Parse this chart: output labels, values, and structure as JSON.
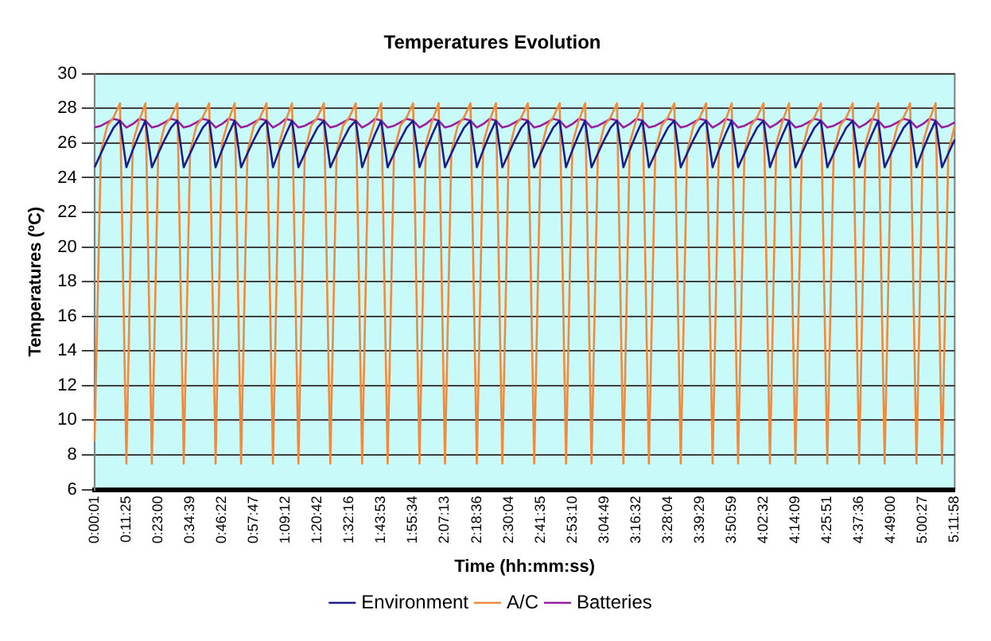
{
  "chart_data": {
    "type": "line",
    "title": "Temperatures Evolution",
    "xlabel": "Time (hh:mm:ss)",
    "ylabel": "Temperatures (ºC)",
    "categories": [
      "0:00:01",
      null,
      null,
      null,
      null,
      "0:11:25",
      null,
      null,
      null,
      null,
      "0:23:00",
      null,
      null,
      null,
      null,
      "0:34:39",
      null,
      null,
      null,
      null,
      "0:46:22",
      null,
      null,
      null,
      null,
      "0:57:47",
      null,
      null,
      null,
      null,
      "1:09:12",
      null,
      null,
      null,
      null,
      "1:20:42",
      null,
      null,
      null,
      null,
      "1:32:16",
      null,
      null,
      null,
      null,
      "1:43:53",
      null,
      null,
      null,
      null,
      "1:55:34",
      null,
      null,
      null,
      null,
      "2:07:13",
      null,
      null,
      null,
      null,
      "2:18:36",
      null,
      null,
      null,
      null,
      "2:30:04",
      null,
      null,
      null,
      null,
      "2:41:35",
      null,
      null,
      null,
      null,
      "2:53:10",
      null,
      null,
      null,
      null,
      "3:04:49",
      null,
      null,
      null,
      null,
      "3:16:32",
      null,
      null,
      null,
      null,
      "3:28:04",
      null,
      null,
      null,
      null,
      "3:39:29",
      null,
      null,
      null,
      null,
      "3:50:59",
      null,
      null,
      null,
      null,
      "4:02:32",
      null,
      null,
      null,
      null,
      "4:14:09",
      null,
      null,
      null,
      null,
      "4:25:51",
      null,
      null,
      null,
      null,
      "4:37:36",
      null,
      null,
      null,
      null,
      "4:49:00",
      null,
      null,
      null,
      null,
      "5:00:27",
      null,
      null,
      null,
      null,
      "5:11:58"
    ],
    "series": [
      {
        "name": "Environment",
        "color": "#1c1c8c",
        "values": [
          24.6,
          25.4,
          26.2,
          26.9,
          27.3,
          24.6,
          25.6,
          26.5,
          27.3,
          24.6,
          25.4,
          26.2,
          26.9,
          27.3,
          24.6,
          25.4,
          26.2,
          26.9,
          27.3,
          24.6,
          25.6,
          26.5,
          27.3,
          24.6,
          25.4,
          26.2,
          26.9,
          27.3,
          24.6,
          25.6,
          26.5,
          27.3,
          24.6,
          25.4,
          26.2,
          26.9,
          27.3,
          24.6,
          25.4,
          26.2,
          26.9,
          27.3,
          24.6,
          25.6,
          26.5,
          27.3,
          24.6,
          25.4,
          26.2,
          26.9,
          27.3,
          24.6,
          25.6,
          26.5,
          27.3,
          24.6,
          25.4,
          26.2,
          26.9,
          27.3,
          24.6,
          25.6,
          26.5,
          27.3,
          24.6,
          25.4,
          26.2,
          26.9,
          27.3,
          24.6,
          25.4,
          26.2,
          26.9,
          27.3,
          24.6,
          25.6,
          26.5,
          27.3,
          24.6,
          25.4,
          26.2,
          26.9,
          27.3,
          24.6,
          25.6,
          26.5,
          27.3,
          24.6,
          25.4,
          26.2,
          26.9,
          27.3,
          24.6,
          25.4,
          26.2,
          26.9,
          27.3,
          24.6,
          25.6,
          26.5,
          27.3,
          24.6,
          25.4,
          26.2,
          26.9,
          27.3,
          24.6,
          25.6,
          26.5,
          27.3,
          24.6,
          25.4,
          26.2,
          26.9,
          27.3,
          24.6,
          25.4,
          26.2,
          26.9,
          27.3,
          24.6,
          25.6,
          26.5,
          27.3,
          24.6,
          25.4,
          26.2,
          26.9,
          27.3,
          24.6,
          25.6,
          26.5,
          27.3,
          24.6,
          25.4,
          26.2
        ]
      },
      {
        "name": "A/C",
        "color": "#f08a3c",
        "values": [
          8.8,
          25.5,
          27,
          27.5,
          28.3,
          7.5,
          26,
          27.3,
          28.3,
          7.5,
          25.5,
          27,
          27.5,
          28.3,
          7.5,
          25.5,
          27,
          27.5,
          28.3,
          7.5,
          26,
          27.3,
          28.3,
          7.5,
          25.5,
          27,
          27.5,
          28.3,
          7.5,
          26,
          27.3,
          28.3,
          7.5,
          25.5,
          27,
          27.5,
          28.3,
          7.5,
          25.5,
          27,
          27.5,
          28.3,
          7.5,
          26,
          27.3,
          28.3,
          7.5,
          25.5,
          27,
          27.5,
          28.3,
          7.5,
          26,
          27.3,
          28.3,
          7.5,
          25.5,
          27,
          27.5,
          28.3,
          7.5,
          26,
          27.3,
          28.3,
          7.5,
          25.5,
          27,
          27.5,
          28.3,
          7.5,
          25.5,
          27,
          27.5,
          28.3,
          7.5,
          26,
          27.3,
          28.3,
          7.5,
          25.5,
          27,
          27.5,
          28.3,
          7.5,
          26,
          27.3,
          28.3,
          7.5,
          25.5,
          27,
          27.5,
          28.3,
          7.5,
          25.5,
          27,
          27.5,
          28.3,
          7.5,
          26,
          27.3,
          28.3,
          7.5,
          25.5,
          27,
          27.5,
          28.3,
          7.5,
          26,
          27.3,
          28.3,
          7.5,
          25.5,
          27,
          27.5,
          28.3,
          7.5,
          25.5,
          27,
          27.5,
          28.3,
          7.5,
          26,
          27.3,
          28.3,
          7.5,
          25.5,
          27,
          27.5,
          28.3,
          7.5,
          26,
          27.3,
          28.3,
          7.5,
          25.5,
          27
        ]
      },
      {
        "name": "Batteries",
        "color": "#9a1ea0",
        "values": [
          26.9,
          27,
          27.2,
          27.4,
          27.3,
          26.9,
          27.1,
          27.4,
          27.3,
          26.9,
          27,
          27.2,
          27.4,
          27.3,
          26.9,
          27,
          27.2,
          27.4,
          27.3,
          26.9,
          27.1,
          27.4,
          27.3,
          26.9,
          27,
          27.2,
          27.4,
          27.3,
          26.9,
          27.1,
          27.4,
          27.3,
          26.9,
          27,
          27.2,
          27.4,
          27.3,
          26.9,
          27,
          27.2,
          27.4,
          27.3,
          26.9,
          27.1,
          27.4,
          27.3,
          26.9,
          27,
          27.2,
          27.4,
          27.3,
          26.9,
          27.1,
          27.4,
          27.3,
          26.9,
          27,
          27.2,
          27.4,
          27.3,
          26.9,
          27.1,
          27.4,
          27.3,
          26.9,
          27,
          27.2,
          27.4,
          27.3,
          26.9,
          27,
          27.2,
          27.4,
          27.3,
          26.9,
          27.1,
          27.4,
          27.3,
          26.9,
          27,
          27.2,
          27.4,
          27.3,
          26.9,
          27.1,
          27.4,
          27.3,
          26.9,
          27,
          27.2,
          27.4,
          27.3,
          26.9,
          27,
          27.2,
          27.4,
          27.3,
          26.9,
          27.1,
          27.4,
          27.3,
          26.9,
          27,
          27.2,
          27.4,
          27.3,
          26.9,
          27.1,
          27.4,
          27.3,
          26.9,
          27,
          27.2,
          27.4,
          27.3,
          26.9,
          27,
          27.2,
          27.4,
          27.3,
          26.9,
          27.1,
          27.4,
          27.3,
          26.9,
          27,
          27.2,
          27.4,
          27.3,
          26.9,
          27.1,
          27.4,
          27.3,
          26.9,
          27,
          27.2
        ]
      }
    ],
    "ylim": [
      6,
      30
    ],
    "yticks": [
      6,
      8,
      10,
      12,
      14,
      16,
      18,
      20,
      22,
      24,
      26,
      28,
      30
    ],
    "grid": "y",
    "legend": "bottom",
    "marker": "none",
    "line_style": "solid"
  }
}
